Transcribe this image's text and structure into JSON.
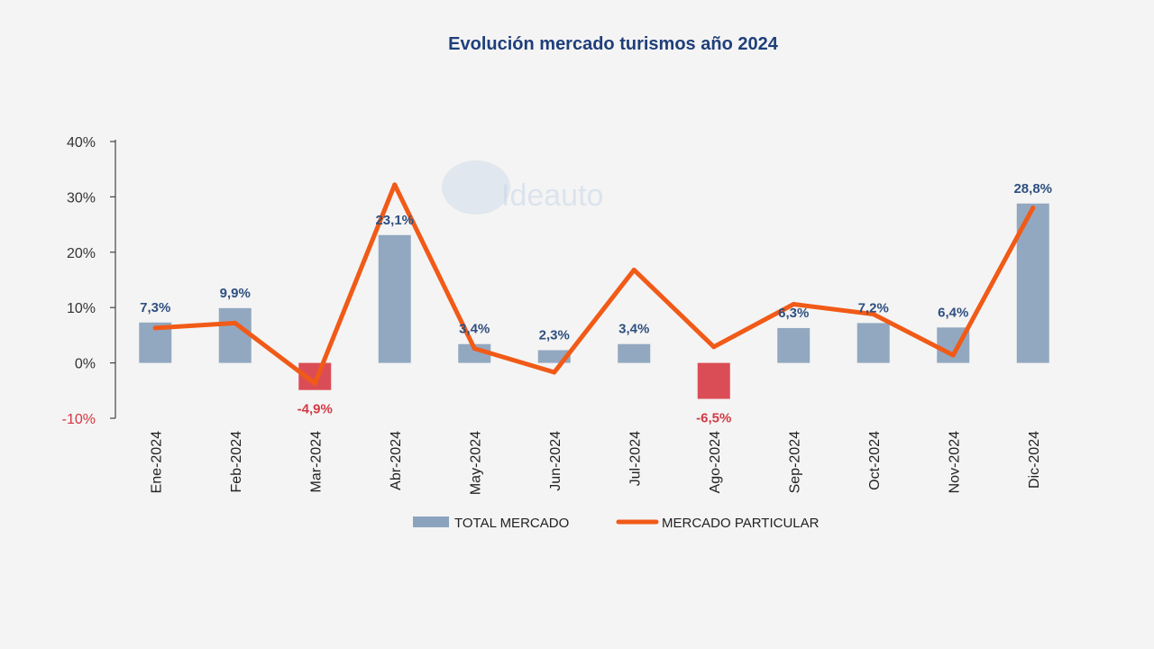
{
  "chart_data": {
    "type": "bar+line",
    "title": "Evolución mercado turismos año 2024",
    "categories": [
      "Ene-2024",
      "Feb-2024",
      "Mar-2024",
      "Abr-2024",
      "May-2024",
      "Jun-2024",
      "Jul-2024",
      "Ago-2024",
      "Sep-2024",
      "Oct-2024",
      "Nov-2024",
      "Dic-2024"
    ],
    "series": [
      {
        "name": "TOTAL MERCADO",
        "kind": "bar",
        "color": "#8ca3bd",
        "negative_color": "#d9434d",
        "values": [
          7.3,
          9.9,
          -4.9,
          23.1,
          3.4,
          2.3,
          3.4,
          -6.5,
          6.3,
          7.2,
          6.4,
          28.8
        ],
        "labels": [
          "7,3%",
          "9,9%",
          "-4,9%",
          "23,1%",
          "3,4%",
          "2,3%",
          "3,4%",
          "-6,5%",
          "6,3%",
          "7,2%",
          "6,4%",
          "28,8%"
        ]
      },
      {
        "name": "MERCADO PARTICULAR",
        "kind": "line",
        "color": "#f15a17",
        "values": [
          6.3,
          7.2,
          -3.7,
          32.2,
          2.6,
          -1.7,
          16.8,
          2.9,
          10.6,
          8.8,
          1.4,
          28.0
        ]
      }
    ],
    "yticks": [
      40,
      30,
      20,
      10,
      0,
      -10
    ],
    "ytick_labels": [
      "40%",
      "30%",
      "20%",
      "10%",
      "0%",
      "-10%"
    ],
    "ylim": [
      -10,
      40
    ],
    "xlabel": "",
    "ylabel": "",
    "legend": "bottom-center"
  },
  "watermark": "Ideauto"
}
